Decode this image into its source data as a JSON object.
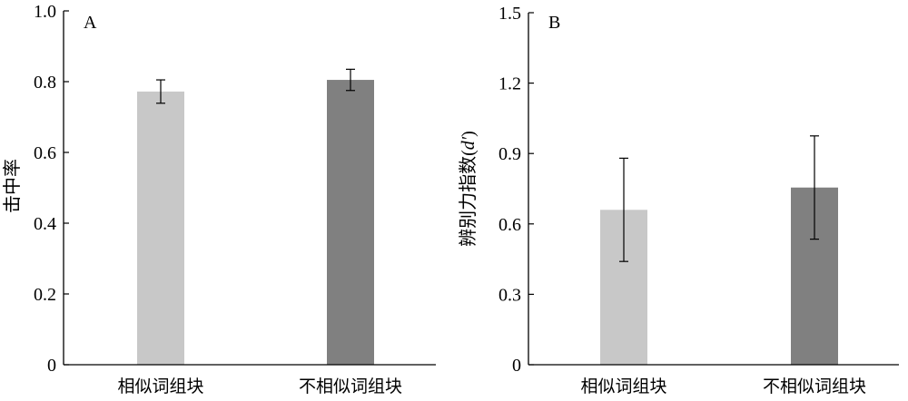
{
  "chart_data": [
    {
      "panel_label": "A",
      "type": "bar",
      "ylabel": "击中率",
      "ylim": [
        0,
        1.0
      ],
      "yticks": [
        "0",
        "0.2",
        "0.4",
        "0.6",
        "0.8",
        "1.0"
      ],
      "ytick_values": [
        0,
        0.2,
        0.4,
        0.6,
        0.8,
        1.0
      ],
      "categories": [
        "相似词组块",
        "不相似词组块"
      ],
      "values": [
        0.772,
        0.805
      ],
      "error": [
        0.033,
        0.03
      ],
      "colors": [
        "#c8c8c8",
        "#808080"
      ],
      "grid": false
    },
    {
      "panel_label": "B",
      "type": "bar",
      "ylabel": "辨别力指数(d′)",
      "ylabel_main": "辨别力指数(",
      "ylabel_italic": "d′",
      "ylabel_close": ")",
      "ylim": [
        0,
        1.5
      ],
      "yticks": [
        "0",
        "0.3",
        "0.6",
        "0.9",
        "1.2",
        "1.5"
      ],
      "ytick_values": [
        0,
        0.3,
        0.6,
        0.9,
        1.2,
        1.5
      ],
      "categories": [
        "相似词组块",
        "不相似词组块"
      ],
      "values": [
        0.66,
        0.755
      ],
      "error": [
        0.22,
        0.22
      ],
      "colors": [
        "#c8c8c8",
        "#808080"
      ],
      "grid": false
    }
  ]
}
